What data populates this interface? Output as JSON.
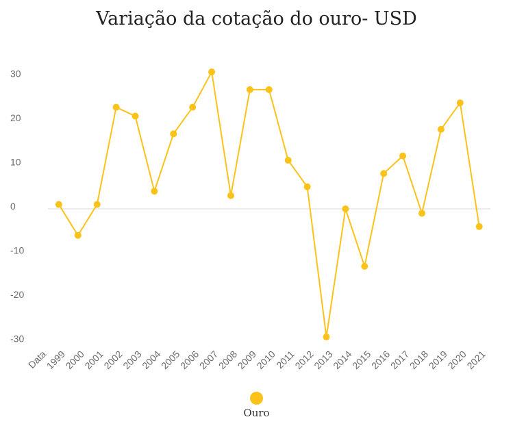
{
  "chart_data": {
    "type": "line",
    "title": "Variação da cotação do ouro- USD",
    "categories": [
      "Data",
      "1999",
      "2000",
      "2001",
      "2002",
      "2003",
      "2004",
      "2005",
      "2006",
      "2007",
      "2008",
      "2009",
      "2010",
      "2011",
      "2012",
      "2013",
      "2014",
      "2015",
      "2016",
      "2017",
      "2018",
      "2019",
      "2020",
      "2021"
    ],
    "series": [
      {
        "name": "Ouro",
        "color": "#fbc21a",
        "values": [
          null,
          1,
          -6,
          1,
          23,
          21,
          4,
          17,
          23,
          31,
          3,
          27,
          27,
          11,
          5,
          -29,
          0,
          -13,
          8,
          12,
          -1,
          18,
          24,
          -4
        ]
      }
    ],
    "ylim": [
      -30,
      30
    ],
    "yticks": [
      30,
      20,
      10,
      0,
      -10,
      -20,
      -30
    ],
    "grid": "zero-line only",
    "legend_position": "bottom"
  }
}
